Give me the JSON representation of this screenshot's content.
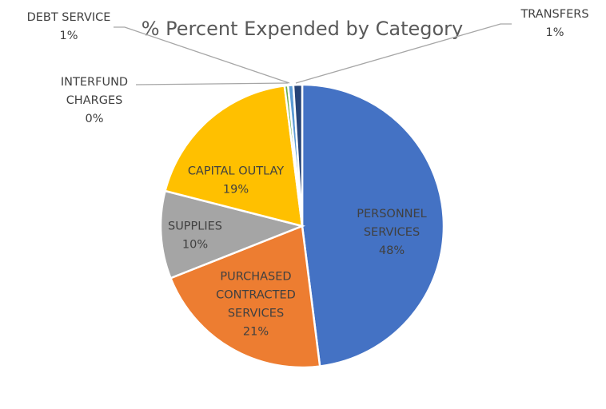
{
  "chart_data": {
    "type": "pie",
    "title": "% Percent Expended by Category",
    "slices": [
      {
        "label": "PERSONNEL SERVICES",
        "label_lines": [
          "PERSONNEL",
          "SERVICES"
        ],
        "value": 48,
        "value_label": "48%",
        "color": "#4472C4"
      },
      {
        "label": "PURCHASED CONTRACTED SERVICES",
        "label_lines": [
          "PURCHASED",
          "CONTRACTED",
          "SERVICES"
        ],
        "value": 21,
        "value_label": "21%",
        "color": "#ED7D31"
      },
      {
        "label": "SUPPLIES",
        "label_lines": [
          "SUPPLIES"
        ],
        "value": 10,
        "value_label": "10%",
        "color": "#A5A5A5"
      },
      {
        "label": "CAPITAL OUTLAY",
        "label_lines": [
          "CAPITAL OUTLAY"
        ],
        "value": 19,
        "value_label": "19%",
        "color": "#FFC000"
      },
      {
        "label": "INTERFUND CHARGES",
        "label_lines": [
          "INTERFUND",
          "CHARGES"
        ],
        "value": 0.4,
        "value_label": "0%",
        "color": "#70AD47"
      },
      {
        "label": "DEBT SERVICE",
        "label_lines": [
          "DEBT SERVICE"
        ],
        "value": 0.6,
        "value_label": "1%",
        "color": "#5B9BD5"
      },
      {
        "label": "TRANSFERS",
        "label_lines": [
          "TRANSFERS"
        ],
        "value": 1,
        "value_label": "1%",
        "color": "#264478"
      }
    ]
  }
}
